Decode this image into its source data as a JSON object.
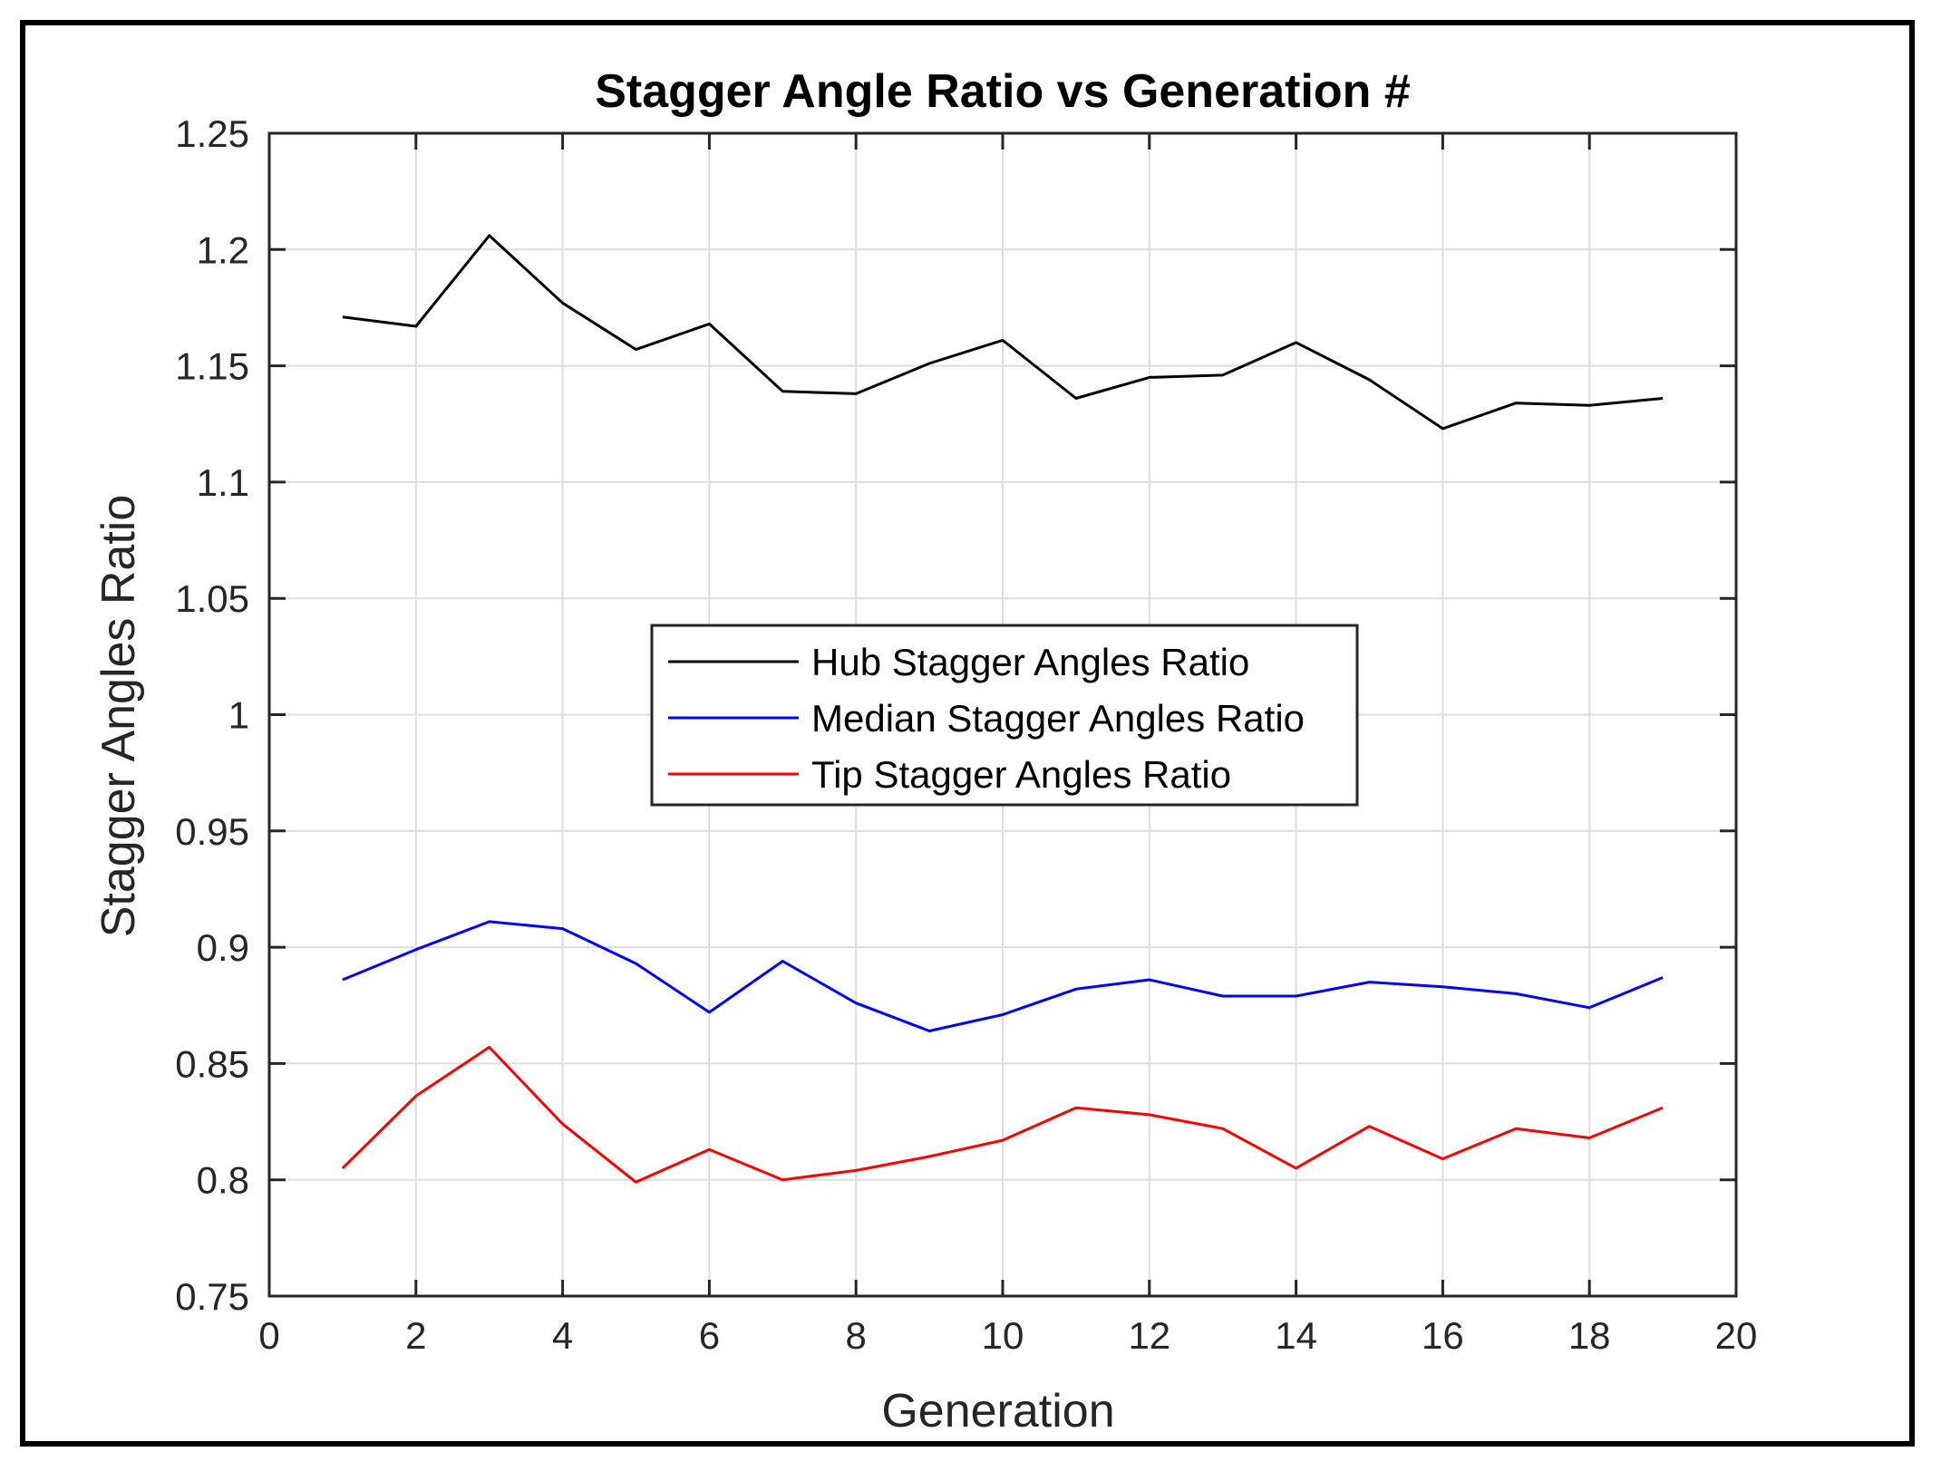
{
  "chart_data": {
    "type": "line",
    "title": "Stagger Angle Ratio vs Generation #",
    "xlabel": "Generation",
    "ylabel": "Stagger Angles Ratio",
    "xlim": [
      0,
      20
    ],
    "ylim": [
      0.75,
      1.25
    ],
    "xticks": [
      "0",
      "2",
      "4",
      "6",
      "8",
      "10",
      "12",
      "14",
      "16",
      "18",
      "20"
    ],
    "yticks": [
      "0.75",
      "0.8",
      "0.85",
      "0.9",
      "0.95",
      "1",
      "1.05",
      "1.1",
      "1.15",
      "1.2",
      "1.25"
    ],
    "grid": true,
    "legend_position": "center",
    "x": [
      1,
      2,
      3,
      4,
      5,
      6,
      7,
      8,
      9,
      10,
      11,
      12,
      13,
      14,
      15,
      16,
      17,
      18,
      19
    ],
    "series": [
      {
        "name": "Hub Stagger Angles Ratio",
        "color": "#000000",
        "values": [
          1.171,
          1.167,
          1.206,
          1.177,
          1.157,
          1.168,
          1.139,
          1.138,
          1.151,
          1.161,
          1.136,
          1.145,
          1.146,
          1.16,
          1.144,
          1.123,
          1.134,
          1.133,
          1.136
        ]
      },
      {
        "name": "Median Stagger Angles Ratio",
        "color": "#0000ff",
        "values": [
          0.886,
          0.899,
          0.911,
          0.908,
          0.893,
          0.872,
          0.894,
          0.876,
          0.864,
          0.871,
          0.882,
          0.886,
          0.879,
          0.879,
          0.885,
          0.883,
          0.88,
          0.874,
          0.887
        ]
      },
      {
        "name": "Tip Stagger Angles Ratio",
        "color": "#ff0000",
        "values": [
          0.805,
          0.836,
          0.857,
          0.824,
          0.799,
          0.813,
          0.8,
          0.804,
          0.81,
          0.817,
          0.831,
          0.828,
          0.822,
          0.805,
          0.823,
          0.809,
          0.822,
          0.818,
          0.831
        ]
      }
    ]
  }
}
